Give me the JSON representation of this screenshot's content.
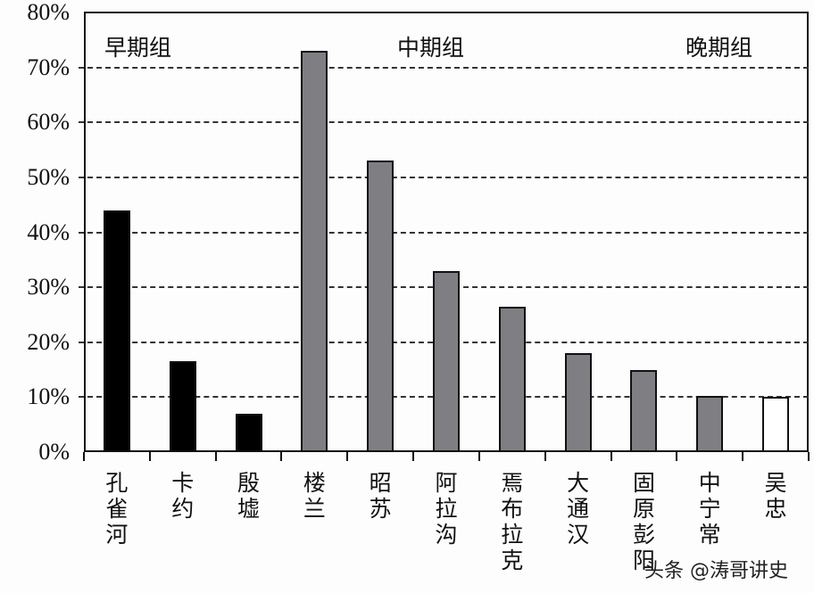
{
  "chart_data": {
    "type": "bar",
    "title": "",
    "xlabel": "",
    "ylabel": "",
    "ylim": [
      0,
      80
    ],
    "yticks": [
      "0%",
      "10%",
      "20%",
      "30%",
      "40%",
      "50%",
      "60%",
      "70%",
      "80%"
    ],
    "grid": "horizontal dashed",
    "categories": [
      "孔雀河",
      "卡约",
      "殷墟",
      "楼兰",
      "昭苏",
      "阿拉沟",
      "焉布拉克",
      "大通汉",
      "固原彭阳",
      "中宁常",
      "吴忠"
    ],
    "values": [
      44,
      16.5,
      7,
      73,
      53,
      33,
      26.5,
      18,
      15,
      10.2,
      10
    ],
    "groups": [
      {
        "name": "早期组",
        "members": [
          "孔雀河",
          "卡约",
          "殷墟"
        ],
        "color": "#000000"
      },
      {
        "name": "中期组",
        "members": [
          "楼兰",
          "昭苏",
          "阿拉沟",
          "焉布拉克",
          "大通汉",
          "固原彭阳",
          "中宁常"
        ],
        "color": "#7f7f83"
      },
      {
        "name": "晚期组",
        "members": [
          "吴忠"
        ],
        "color": "#ffffff"
      }
    ],
    "annotations": [
      "早期组",
      "中期组",
      "晚期组"
    ]
  },
  "group_labels": {
    "early": "早期组",
    "mid": "中期组",
    "late": "晚期组"
  },
  "watermark": "头条 @涛哥讲史"
}
